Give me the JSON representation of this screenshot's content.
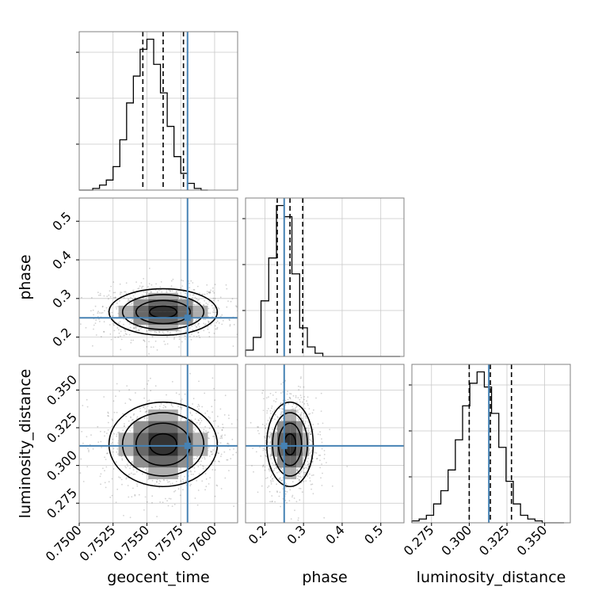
{
  "chart_data": {
    "type": "corner",
    "parameters": [
      "geocent_time",
      "phase",
      "luminosity_distance"
    ],
    "truths": [
      0.758,
      0.25,
      0.313
    ],
    "quantiles": {
      "geocent_time": [
        0.7547,
        0.7562,
        0.7577
      ],
      "phase": [
        0.232,
        0.265,
        0.298
      ],
      "luminosity_distance": [
        0.3,
        0.314,
        0.328
      ]
    },
    "ranges": {
      "geocent_time": [
        0.75,
        0.7617
      ],
      "phase": [
        0.15,
        0.56
      ],
      "luminosity_distance": [
        0.262,
        0.367
      ]
    },
    "ticks": {
      "geocent_time": [
        "0.7500",
        "0.7525",
        "0.7550",
        "0.7575",
        "0.7600"
      ],
      "phase_x": [
        "0.2",
        "0.3",
        "0.4",
        "0.5"
      ],
      "phase_y": [
        "0.2",
        "0.3",
        "0.4",
        "0.5"
      ],
      "luminosity_distance": [
        "0.275",
        "0.300",
        "0.325",
        "0.350"
      ]
    },
    "histograms": {
      "geocent_time": {
        "start": 0.75,
        "bin_width": 0.0005,
        "counts": [
          0,
          0,
          1,
          3,
          6,
          14,
          30,
          52,
          68,
          84,
          90,
          75,
          58,
          38,
          20,
          10,
          4,
          1,
          0
        ]
      },
      "phase": {
        "start": 0.15,
        "bin_width": 0.02,
        "counts": [
          4,
          12,
          35,
          62,
          95,
          88,
          52,
          18,
          6,
          2,
          0,
          0,
          0,
          0,
          0,
          0,
          0,
          0,
          0,
          0
        ]
      },
      "luminosity_distance": {
        "start": 0.262,
        "bin_width": 0.0048,
        "counts": [
          1,
          2,
          4,
          10,
          17,
          28,
          44,
          62,
          74,
          80,
          72,
          58,
          40,
          22,
          10,
          4,
          2,
          1,
          0,
          0,
          0
        ]
      }
    },
    "grid": true,
    "axis_labels": {
      "x": [
        "geocent_time",
        "phase",
        "luminosity_distance"
      ],
      "y": [
        "phase",
        "luminosity_distance"
      ]
    }
  }
}
